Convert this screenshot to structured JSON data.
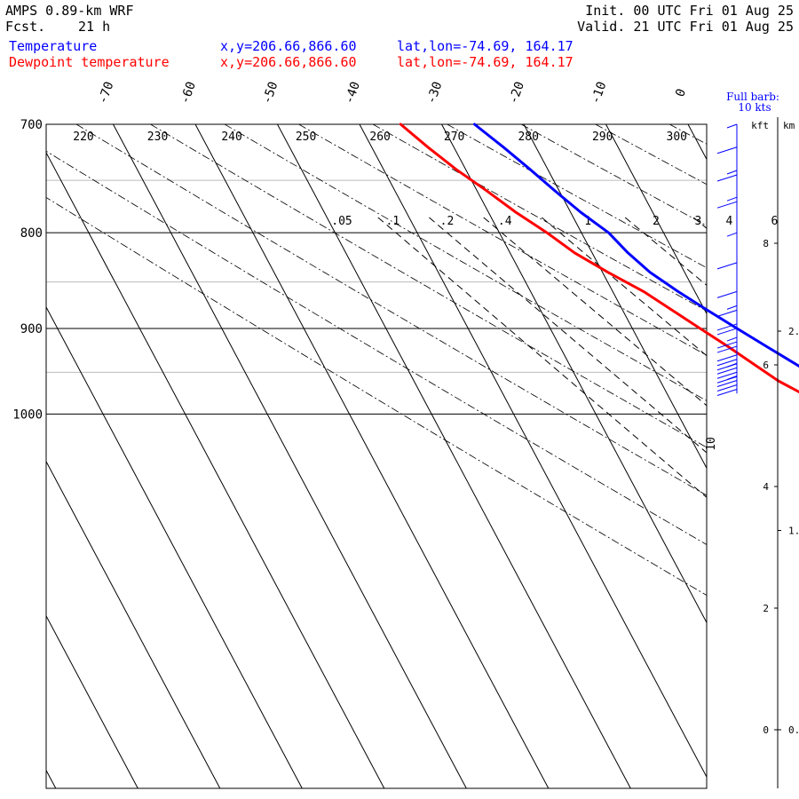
{
  "header": {
    "model": "AMPS 0.89-km WRF",
    "forecast_label": "Fcst.",
    "forecast_value": "21 h",
    "init": "Init. 00 UTC Fri 01 Aug 25",
    "valid": "Valid. 21 UTC Fri 01 Aug 25"
  },
  "legend": {
    "temperature": {
      "name": "Temperature",
      "xy": "x,y=206.66,866.60",
      "latlon": "lat,lon=-74.69, 164.17",
      "color": "#0000ff"
    },
    "dewpoint": {
      "name": "Dewpoint temperature",
      "xy": "x,y=206.66,866.60",
      "latlon": "lat,lon=-74.69, 164.17",
      "color": "#ff0000"
    }
  },
  "barb_panel": {
    "title_line1": "Full barb:",
    "title_line2": "10 kts",
    "kft_label": "kft",
    "km_label": "km",
    "kft_ticks": [
      {
        "value": 8,
        "label": "8"
      },
      {
        "value": 6,
        "label": "6"
      },
      {
        "value": 4,
        "label": "4"
      },
      {
        "value": 2,
        "label": "2"
      },
      {
        "value": 0,
        "label": "0"
      }
    ],
    "km_ticks": [
      {
        "value": 2.0,
        "label": "2."
      },
      {
        "value": 1.0,
        "label": "1."
      },
      {
        "value": 0.0,
        "label": "0."
      }
    ],
    "color": "#0000ff"
  },
  "chart_data": {
    "type": "line",
    "skew_t": true,
    "yscale": "log",
    "pressure_range_hpa": [
      700,
      1045
    ],
    "pressure_labels": [
      700,
      800,
      900,
      1000
    ],
    "pressure_minor": [
      750,
      850,
      950
    ],
    "isotherm_labels_c": [
      -70,
      -60,
      -50,
      -40,
      -30,
      -20,
      -10,
      0
    ],
    "isotherm_range_c": [
      -70,
      20
    ],
    "dry_adiabat_labels_k": [
      220,
      230,
      240,
      250,
      260,
      270,
      280,
      290,
      300
    ],
    "mixing_ratio_labels_gkg": [
      ".05",
      ".1",
      ".2",
      ".4",
      "1",
      "2",
      "3",
      "4",
      "6",
      "10"
    ],
    "mixing_ratio_values_gkg": [
      0.05,
      0.1,
      0.2,
      0.4,
      1,
      2,
      3,
      4,
      6,
      10
    ],
    "series": [
      {
        "name": "Temperature",
        "color": "#0000ff",
        "pressure": [
          700,
          720,
          740,
          760,
          780,
          800,
          820,
          840,
          860,
          880,
          900,
          920,
          940,
          960,
          975
        ],
        "values": [
          -26.0,
          -25.5,
          -25.2,
          -25.0,
          -24.7,
          -24.0,
          -24.3,
          -24.2,
          -23.3,
          -22.2,
          -21.0,
          -19.8,
          -18.6,
          -17.4,
          -16.2
        ]
      },
      {
        "name": "Dewpoint temperature",
        "color": "#ff0000",
        "pressure": [
          700,
          720,
          740,
          760,
          780,
          800,
          820,
          840,
          860,
          880,
          900,
          920,
          940,
          960,
          975
        ],
        "values": [
          -35.0,
          -34.7,
          -34.2,
          -33.3,
          -32.6,
          -31.5,
          -30.8,
          -29.3,
          -27.5,
          -26.5,
          -25.5,
          -24.5,
          -23.7,
          -22.9,
          -21.7
        ]
      }
    ],
    "wind_barbs": [
      {
        "pressure": 700,
        "speed_kt": 5
      },
      {
        "pressure": 720,
        "speed_kt": 10
      },
      {
        "pressure": 745,
        "speed_kt": 15
      },
      {
        "pressure": 770,
        "speed_kt": 15
      },
      {
        "pressure": 800,
        "speed_kt": 5
      },
      {
        "pressure": 830,
        "speed_kt": 10
      },
      {
        "pressure": 860,
        "speed_kt": 10
      },
      {
        "pressure": 880,
        "speed_kt": 15
      },
      {
        "pressure": 900,
        "speed_kt": 20
      },
      {
        "pressure": 920,
        "speed_kt": 25
      },
      {
        "pressure": 940,
        "speed_kt": 30
      },
      {
        "pressure": 955,
        "speed_kt": 35
      },
      {
        "pressure": 970,
        "speed_kt": 35
      }
    ]
  }
}
